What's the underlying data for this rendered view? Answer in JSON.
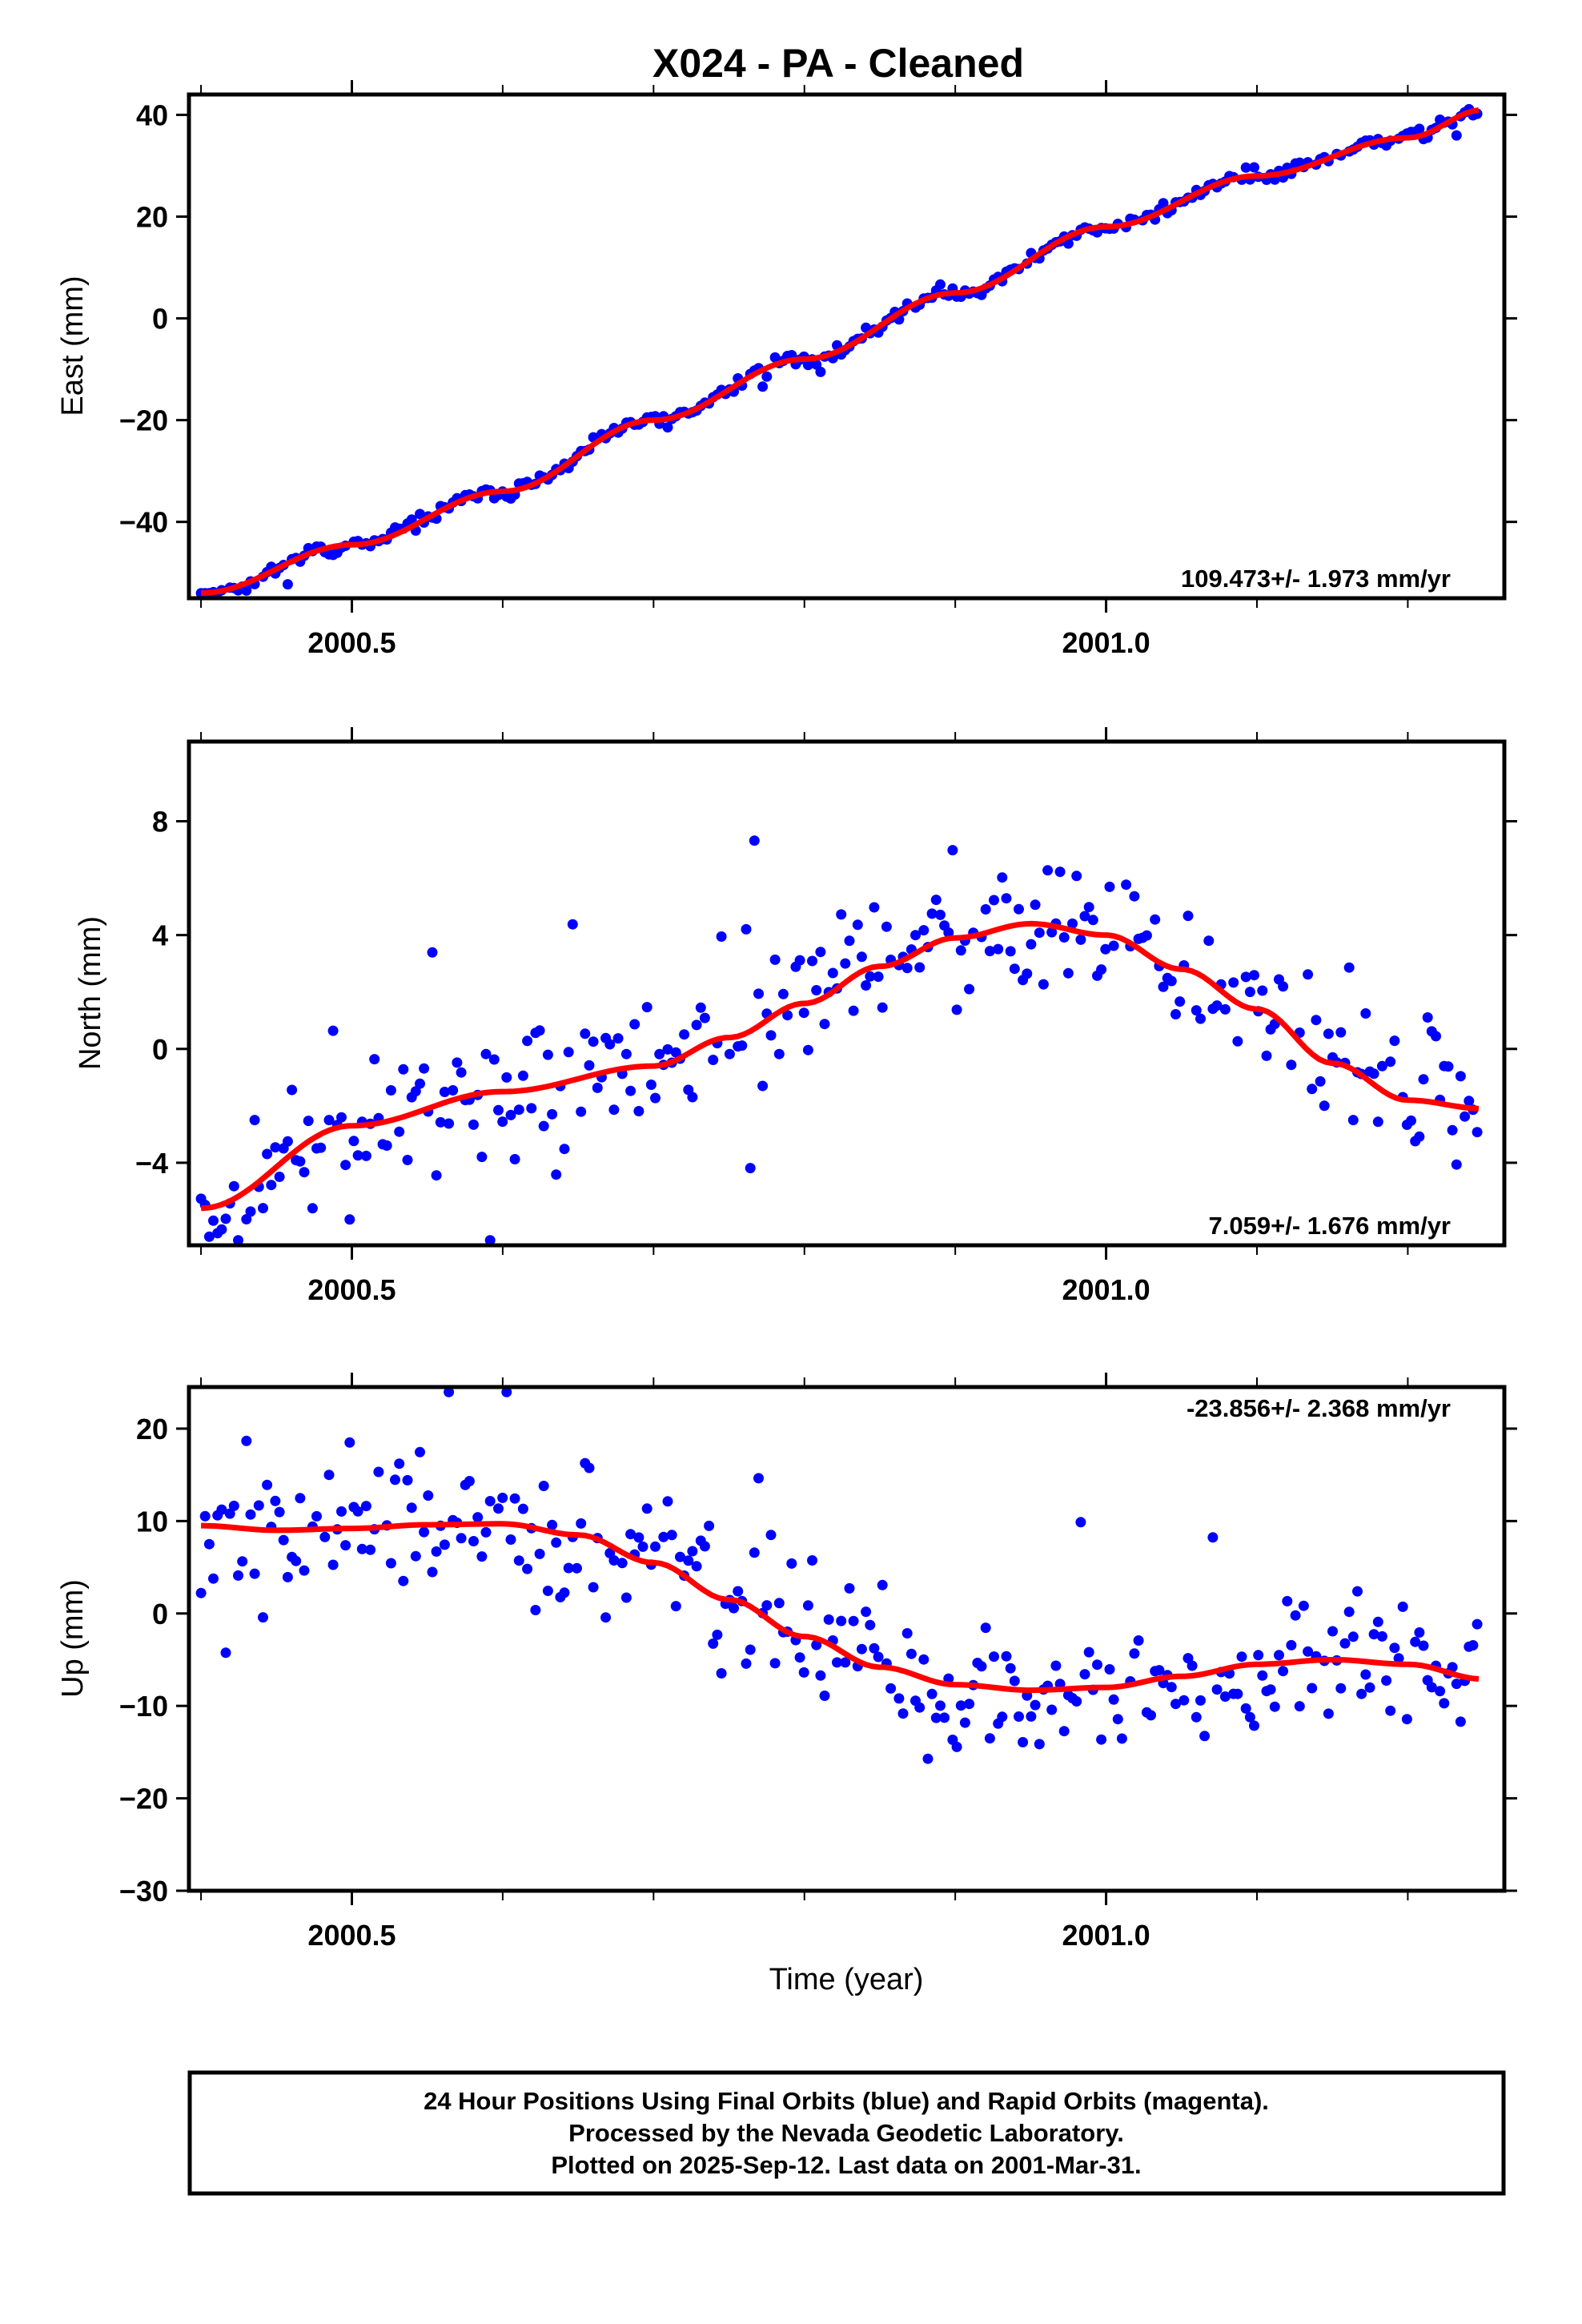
{
  "title": "X024  - PA - Cleaned",
  "xlabel": "Time (year)",
  "footer": {
    "line1": "24 Hour Positions Using Final Orbits (blue) and Rapid Orbits (magenta).",
    "line2": "Processed by the Nevada Geodetic Laboratory.",
    "line3": "Plotted on 2025-Sep-12. Last data on 2001-Mar-31."
  },
  "colors": {
    "points": "#0000ff",
    "fit": "#ff0000",
    "frame": "#000000"
  },
  "chart_data": [
    {
      "type": "scatter",
      "ylabel": "East (mm)",
      "rate": "109.473+/- 1.973 mm/yr",
      "rate_position": "bottom-right",
      "xlim": [
        2000.392,
        2001.264
      ],
      "ylim": [
        -55,
        44
      ],
      "xticks": [
        2000.5,
        2001.0
      ],
      "xticks_minor": [
        2000.4,
        2000.6,
        2000.7,
        2000.8,
        2000.9,
        2001.1,
        2001.2
      ],
      "yticks": [
        -40,
        -20,
        0,
        20,
        40
      ],
      "grid": false,
      "fit_x": [
        2000.4,
        2000.5,
        2000.6,
        2000.7,
        2000.8,
        2000.9,
        2001.0,
        2001.1,
        2001.2,
        2001.25
      ],
      "fit_y": [
        -54,
        -44.5,
        -34,
        -20,
        -8,
        5,
        18,
        28,
        35.5,
        41
      ],
      "noise": 1.2,
      "outliers": 2,
      "seed": 11
    },
    {
      "type": "scatter",
      "ylabel": "North (mm)",
      "rate": "7.059+/- 1.676 mm/yr",
      "rate_position": "bottom-right",
      "xlim": [
        2000.392,
        2001.264
      ],
      "ylim": [
        -6.9,
        10.8
      ],
      "xticks": [
        2000.5,
        2001.0
      ],
      "xticks_minor": [
        2000.4,
        2000.6,
        2000.7,
        2000.8,
        2000.9,
        2001.1,
        2001.2
      ],
      "yticks": [
        -4,
        0,
        4,
        8
      ],
      "grid": false,
      "fit_x": [
        2000.4,
        2000.5,
        2000.6,
        2000.7,
        2000.75,
        2000.8,
        2000.85,
        2000.9,
        2000.95,
        2001.0,
        2001.05,
        2001.1,
        2001.15,
        2001.2,
        2001.25
      ],
      "fit_y": [
        -5.6,
        -2.7,
        -1.5,
        -0.6,
        0.4,
        1.6,
        2.9,
        3.9,
        4.4,
        4.0,
        2.8,
        1.4,
        -0.5,
        -1.8,
        -2.1
      ],
      "noise": 1.9,
      "outliers": 4,
      "seed": 23
    },
    {
      "type": "scatter",
      "ylabel": "Up (mm)",
      "rate": "-23.856+/- 2.368 mm/yr",
      "rate_position": "top-right",
      "xlim": [
        2000.392,
        2001.264
      ],
      "ylim": [
        -30,
        24.5
      ],
      "xticks": [
        2000.5,
        2001.0
      ],
      "xticks_minor": [
        2000.4,
        2000.6,
        2000.7,
        2000.8,
        2000.9,
        2001.1,
        2001.2
      ],
      "yticks": [
        -30,
        -20,
        -10,
        0,
        10,
        20
      ],
      "grid": false,
      "fit_x": [
        2000.4,
        2000.45,
        2000.5,
        2000.55,
        2000.6,
        2000.65,
        2000.7,
        2000.75,
        2000.8,
        2000.85,
        2000.9,
        2000.95,
        2001.0,
        2001.05,
        2001.1,
        2001.15,
        2001.2,
        2001.25
      ],
      "fit_y": [
        9.5,
        9.0,
        9.2,
        9.6,
        9.7,
        8.5,
        5.5,
        1.5,
        -2.5,
        -5.8,
        -7.7,
        -8.3,
        -8.0,
        -6.8,
        -5.5,
        -5.0,
        -5.5,
        -7.1
      ],
      "noise": 6.0,
      "outliers": 5,
      "seed": 37
    }
  ]
}
